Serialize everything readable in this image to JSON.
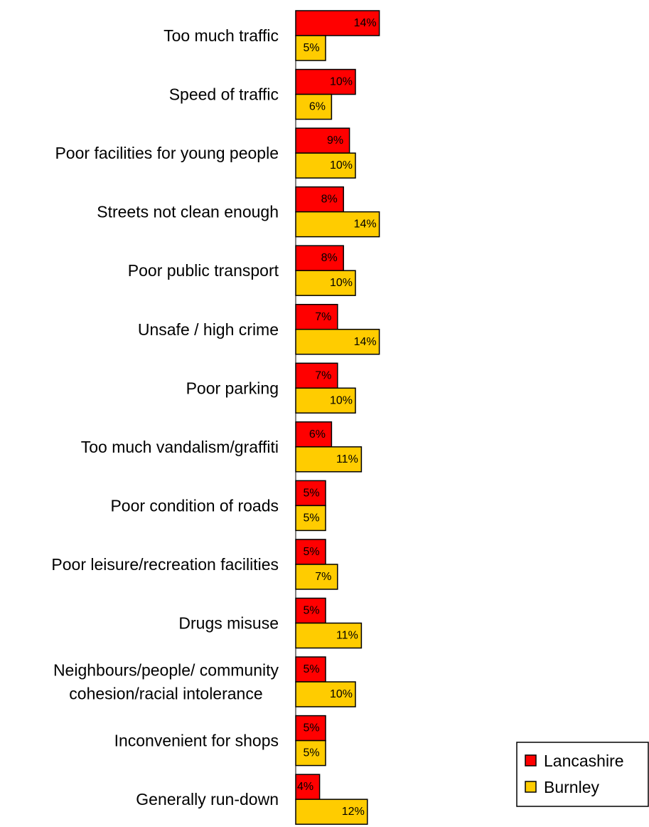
{
  "chart_data": {
    "type": "bar",
    "orientation": "horizontal",
    "categories": [
      "Too much traffic",
      "Speed of traffic",
      "Poor facilities for young people",
      "Streets not clean enough",
      "Poor public transport",
      "Unsafe / high crime",
      "Poor parking",
      "Too much vandalism/graffiti",
      "Poor condition of roads",
      "Poor leisure/recreation facilities",
      "Drugs misuse",
      "Neighbours/people/ community\ncohesion/racial intolerance",
      "Inconvenient for shops",
      "Generally run-down"
    ],
    "series": [
      {
        "name": "Lancashire",
        "color": "#ff0000",
        "values": [
          14,
          10,
          9,
          8,
          8,
          7,
          7,
          6,
          5,
          5,
          5,
          5,
          5,
          4
        ],
        "labels": [
          "14%",
          "10%",
          "9%",
          "8%",
          "8%",
          "7%",
          "7%",
          "6%",
          "5%",
          "5%",
          "5%",
          "5%",
          "5%",
          "4%"
        ]
      },
      {
        "name": "Burnley",
        "color": "#ffcc00",
        "values": [
          5,
          6,
          10,
          14,
          10,
          14,
          10,
          11,
          5,
          7,
          11,
          10,
          5,
          12
        ],
        "labels": [
          "5%",
          "6%",
          "10%",
          "14%",
          "10%",
          "14%",
          "10%",
          "11%",
          "5%",
          "7%",
          "11%",
          "10%",
          "5%",
          "12%"
        ]
      }
    ],
    "legend": "bottom-right",
    "grid": false,
    "axis_visible": false,
    "title": "",
    "xlabel": "",
    "ylabel": ""
  }
}
